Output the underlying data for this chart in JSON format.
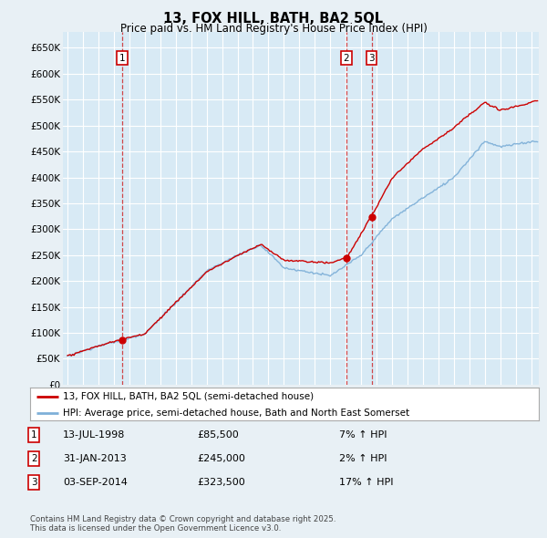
{
  "title": "13, FOX HILL, BATH, BA2 5QL",
  "subtitle": "Price paid vs. HM Land Registry's House Price Index (HPI)",
  "bg_color": "#e8f0f5",
  "plot_bg_color": "#d8eaf5",
  "grid_color": "#ffffff",
  "sale_info": [
    {
      "label": "1",
      "date": "13-JUL-1998",
      "price": "£85,500",
      "hpi": "7% ↑ HPI"
    },
    {
      "label": "2",
      "date": "31-JAN-2013",
      "price": "£245,000",
      "hpi": "2% ↑ HPI"
    },
    {
      "label": "3",
      "date": "03-SEP-2014",
      "price": "£323,500",
      "hpi": "17% ↑ HPI"
    }
  ],
  "legend_line1": "13, FOX HILL, BATH, BA2 5QL (semi-detached house)",
  "legend_line2": "HPI: Average price, semi-detached house, Bath and North East Somerset",
  "footnote": "Contains HM Land Registry data © Crown copyright and database right 2025.\nThis data is licensed under the Open Government Licence v3.0.",
  "price_line_color": "#cc0000",
  "hpi_line_color": "#7fb0d8",
  "sale_marker_color": "#cc0000",
  "vline_color": "#cc0000",
  "ylim": [
    0,
    680000
  ],
  "yticks": [
    0,
    50000,
    100000,
    150000,
    200000,
    250000,
    300000,
    350000,
    400000,
    450000,
    500000,
    550000,
    600000,
    650000
  ],
  "xlim_start": 1994.7,
  "xlim_end": 2025.5
}
